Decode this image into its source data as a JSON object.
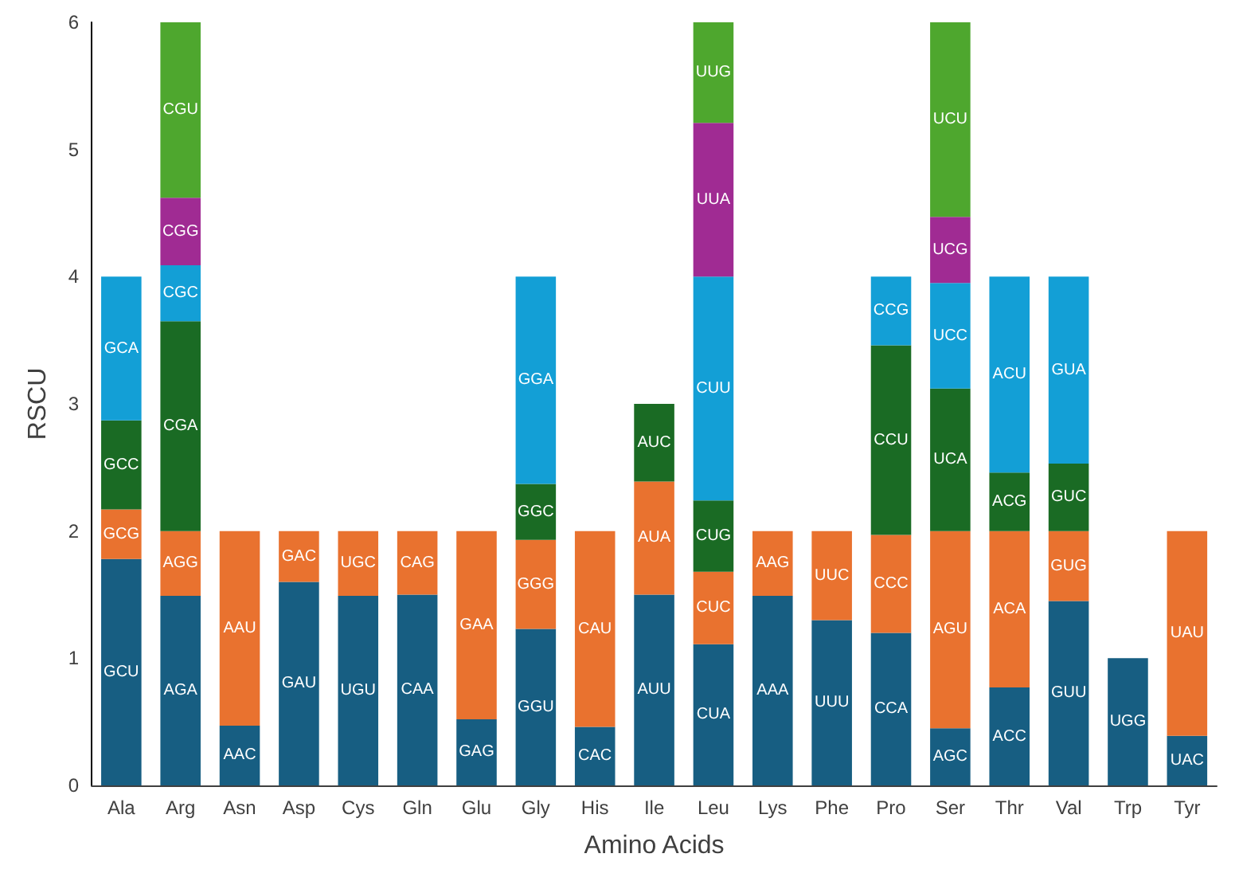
{
  "chart_data": {
    "type": "bar",
    "stacked": true,
    "xlabel": "Amino Acids",
    "ylabel": "RSCU",
    "ylim": [
      0,
      6
    ],
    "yticks": [
      0,
      1,
      2,
      3,
      4,
      5,
      6
    ],
    "grid": false,
    "categories": [
      "Ala",
      "Arg",
      "Asn",
      "Asp",
      "Cys",
      "Gln",
      "Glu",
      "Gly",
      "His",
      "Ile",
      "Leu",
      "Lys",
      "Phe",
      "Pro",
      "Ser",
      "Thr",
      "Val",
      "Trp",
      "Tyr"
    ],
    "series": [
      {
        "color": "#175e82",
        "values": [
          1.78,
          1.49,
          0.47,
          1.6,
          1.49,
          1.5,
          0.52,
          1.23,
          0.46,
          1.5,
          1.11,
          1.49,
          1.3,
          1.2,
          0.45,
          0.77,
          1.45,
          1.0,
          0.39
        ],
        "value_labels": [
          "GCU",
          "AGA",
          "AAC",
          "GAU",
          "UGU",
          "CAA",
          "GAG",
          "GGU",
          "CAC",
          "AUU",
          "CUA",
          "AAA",
          "UUU",
          "CCA",
          "AGC",
          "ACC",
          "GUU",
          "UGG",
          "UAC"
        ]
      },
      {
        "color": "#e9722f",
        "values": [
          0.39,
          0.51,
          1.53,
          0.4,
          0.51,
          0.5,
          1.48,
          0.7,
          1.54,
          0.89,
          0.57,
          0.51,
          0.7,
          0.77,
          1.55,
          1.23,
          0.55,
          null,
          1.61
        ],
        "value_labels": [
          "GCG",
          "AGG",
          "AAU",
          "GAC",
          "UGC",
          "CAG",
          "GAA",
          "GGG",
          "CAU",
          "AUA",
          "CUC",
          "AAG",
          "UUC",
          "CCC",
          "AGU",
          "ACA",
          "GUG",
          null,
          "UAU"
        ]
      },
      {
        "color": "#1a6b24",
        "values": [
          0.7,
          1.65,
          null,
          null,
          null,
          null,
          null,
          0.44,
          null,
          0.61,
          0.56,
          null,
          null,
          1.49,
          1.12,
          0.46,
          0.53,
          null,
          null
        ],
        "value_labels": [
          "GCC",
          "CGA",
          null,
          null,
          null,
          null,
          null,
          "GGC",
          null,
          "AUC",
          "CUG",
          null,
          null,
          "CCU",
          "UCA",
          "ACG",
          "GUC",
          null,
          null
        ]
      },
      {
        "color": "#139fd6",
        "values": [
          1.13,
          0.44,
          null,
          null,
          null,
          null,
          null,
          1.63,
          null,
          null,
          1.76,
          null,
          null,
          0.54,
          0.83,
          1.54,
          1.47,
          null,
          null
        ],
        "value_labels": [
          "GCA",
          "CGC",
          null,
          null,
          null,
          null,
          null,
          "GGA",
          null,
          null,
          "CUU",
          null,
          null,
          "CCG",
          "UCC",
          "ACU",
          "GUA",
          null,
          null
        ]
      },
      {
        "color": "#a02b93",
        "values": [
          null,
          0.53,
          null,
          null,
          null,
          null,
          null,
          null,
          null,
          null,
          1.21,
          null,
          null,
          null,
          0.52,
          null,
          null,
          null,
          null
        ],
        "value_labels": [
          null,
          "CGG",
          null,
          null,
          null,
          null,
          null,
          null,
          null,
          null,
          "UUA",
          null,
          null,
          null,
          "UCG",
          null,
          null,
          null,
          null
        ]
      },
      {
        "color": "#4ea72e",
        "values": [
          null,
          1.38,
          null,
          null,
          null,
          null,
          null,
          null,
          null,
          null,
          0.79,
          null,
          null,
          null,
          1.53,
          null,
          null,
          null,
          null
        ],
        "value_labels": [
          null,
          "CGU",
          null,
          null,
          null,
          null,
          null,
          null,
          null,
          null,
          "UUG",
          null,
          null,
          null,
          "UCU",
          null,
          null,
          null,
          null
        ]
      }
    ]
  }
}
